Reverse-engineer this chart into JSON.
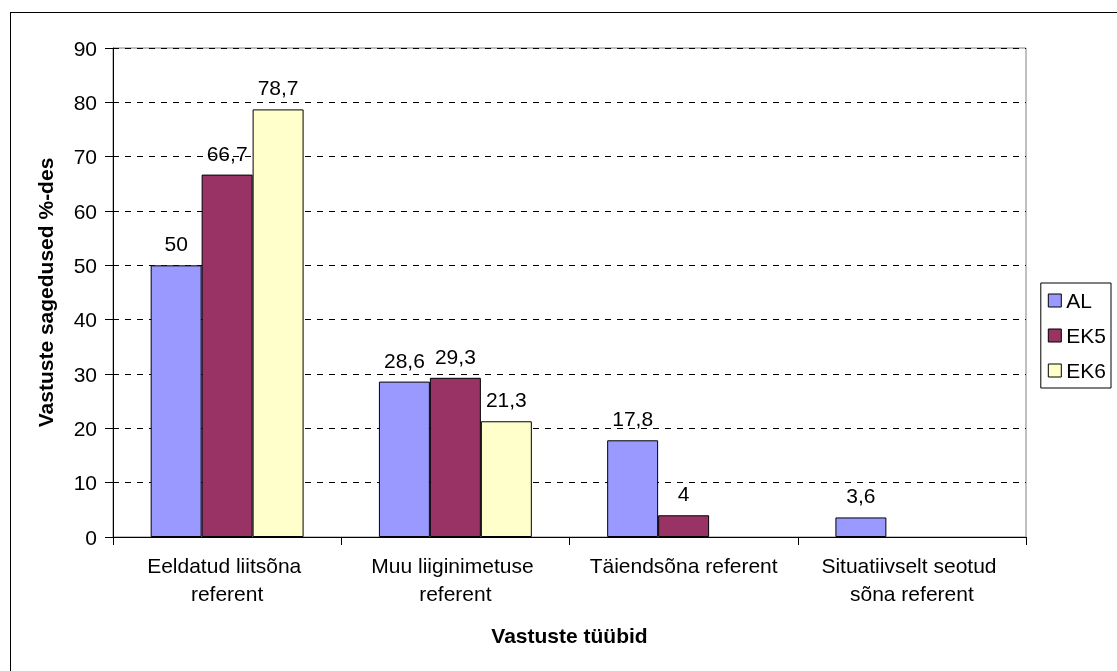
{
  "chart_data": {
    "type": "bar",
    "xlabel": "Vastuste tüübid",
    "ylabel": "Vastuste sagedused %-des",
    "categories": [
      "Eeldatud liitsõna referent",
      "Muu liiginimetuse referent",
      "Täiendsõna referent",
      "Situatiivselt seotud sõna referent"
    ],
    "series": [
      {
        "name": "AL",
        "color": "#9999ff",
        "values": [
          50,
          28.6,
          17.8,
          3.6
        ],
        "value_labels": [
          "50",
          "28,6",
          "17,8",
          "3,6"
        ]
      },
      {
        "name": "EK5",
        "color": "#993366",
        "values": [
          66.7,
          29.3,
          4,
          null
        ],
        "value_labels": [
          "66,7",
          "29,3",
          "4",
          null
        ]
      },
      {
        "name": "EK6",
        "color": "#ffffcc",
        "values": [
          78.7,
          21.3,
          null,
          null
        ],
        "value_labels": [
          "78,7",
          "21,3",
          null,
          null
        ]
      }
    ],
    "ylim": [
      0,
      90
    ],
    "yticks": [
      0,
      10,
      20,
      30,
      40,
      50,
      60,
      70,
      80,
      90
    ],
    "grid": "y",
    "legend": "right"
  }
}
